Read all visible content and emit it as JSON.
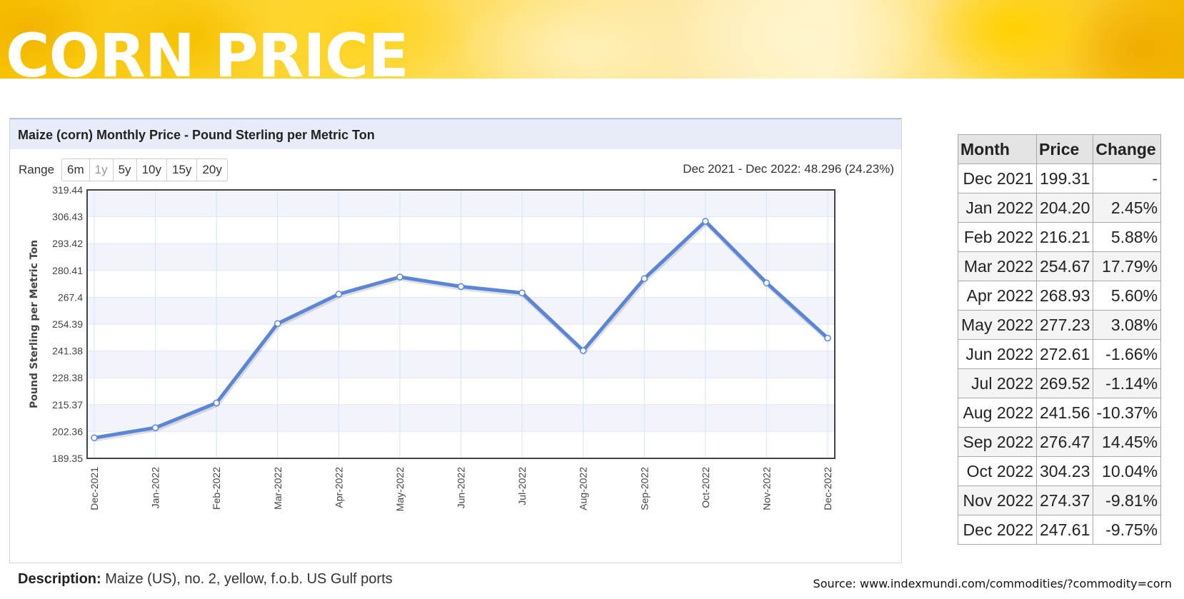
{
  "banner": {
    "title": "CORN PRICE"
  },
  "chart_panel": {
    "title": "Maize (corn) Monthly Price - Pound Sterling per Metric Ton",
    "range_label": "Range",
    "range_buttons": [
      "6m",
      "1y",
      "5y",
      "10y",
      "15y",
      "20y"
    ],
    "active_range": "1y",
    "range_info": "Dec 2021 - Dec 2022: 48.296 (24.23%)"
  },
  "chart_data": {
    "type": "line",
    "title": "Maize (corn) Monthly Price - Pound Sterling per Metric Ton",
    "xlabel": "",
    "ylabel": "Pound Sterling per Metric Ton",
    "x": [
      "Dec-2021",
      "Jan-2022",
      "Feb-2022",
      "Mar-2022",
      "Apr-2022",
      "May-2022",
      "Jun-2022",
      "Jul-2022",
      "Aug-2022",
      "Sep-2022",
      "Oct-2022",
      "Nov-2022",
      "Dec-2022"
    ],
    "series": [
      {
        "values": [
          199.31,
          204.2,
          216.21,
          254.67,
          268.93,
          277.23,
          272.61,
          269.52,
          241.56,
          276.47,
          304.23,
          274.37,
          247.61
        ]
      }
    ],
    "y_ticks": [
      "189.35",
      "202.36",
      "215.37",
      "228.38",
      "241.38",
      "254.39",
      "267.4",
      "280.41",
      "293.42",
      "306.43",
      "319.44"
    ],
    "ylim": [
      189.35,
      319.44
    ],
    "grid": true,
    "line_color": "#5b86d6"
  },
  "description": {
    "label": "Description:",
    "text": "Maize (US), no. 2, yellow, f.o.b. US Gulf ports"
  },
  "source": "Source: www.indexmundi.com/commodities/?commodity=corn",
  "price_table": {
    "headers": [
      "Month",
      "Price",
      "Change"
    ],
    "rows": [
      [
        "Dec 2021",
        "199.31",
        "-"
      ],
      [
        "Jan 2022",
        "204.20",
        "2.45%"
      ],
      [
        "Feb 2022",
        "216.21",
        "5.88%"
      ],
      [
        "Mar 2022",
        "254.67",
        "17.79%"
      ],
      [
        "Apr 2022",
        "268.93",
        "5.60%"
      ],
      [
        "May 2022",
        "277.23",
        "3.08%"
      ],
      [
        "Jun 2022",
        "272.61",
        "-1.66%"
      ],
      [
        "Jul 2022",
        "269.52",
        "-1.14%"
      ],
      [
        "Aug 2022",
        "241.56",
        "-10.37%"
      ],
      [
        "Sep 2022",
        "276.47",
        "14.45%"
      ],
      [
        "Oct 2022",
        "304.23",
        "10.04%"
      ],
      [
        "Nov 2022",
        "274.37",
        "-9.81%"
      ],
      [
        "Dec 2022",
        "247.61",
        "-9.75%"
      ]
    ]
  }
}
